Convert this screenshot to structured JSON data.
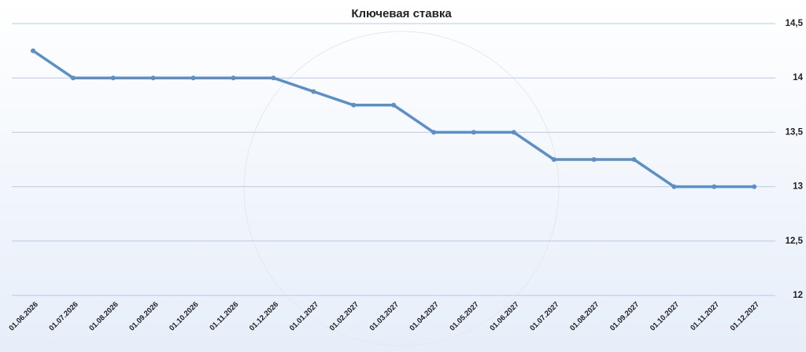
{
  "chart_data": {
    "type": "line",
    "title": "Ключевая ставка",
    "categories": [
      "01.06.2026",
      "01.07.2026",
      "01.08.2026",
      "01.09.2026",
      "01.10.2026",
      "01.11.2026",
      "01.12.2026",
      "01.01.2027",
      "01.02.2027",
      "01.03.2027",
      "01.04.2027",
      "01.05.2027",
      "01.06.2027",
      "01.07.2027",
      "01.08.2027",
      "01.09.2027",
      "01.10.2027",
      "01.11.2027",
      "01.12.2027"
    ],
    "values": [
      14.25,
      14,
      14,
      14,
      14,
      14,
      14,
      13.875,
      13.75,
      13.75,
      13.5,
      13.5,
      13.5,
      13.25,
      13.25,
      13.25,
      13,
      13,
      13
    ],
    "color": "#5b8fc9",
    "ylim": [
      12,
      14.5
    ],
    "yticks": [
      12,
      {
        "value": 12.5,
        "label": "12,5"
      },
      13,
      {
        "value": 13.5,
        "label": "13,5"
      },
      14,
      {
        "value": 14.5,
        "label": "14,5"
      }
    ],
    "grid": true
  }
}
